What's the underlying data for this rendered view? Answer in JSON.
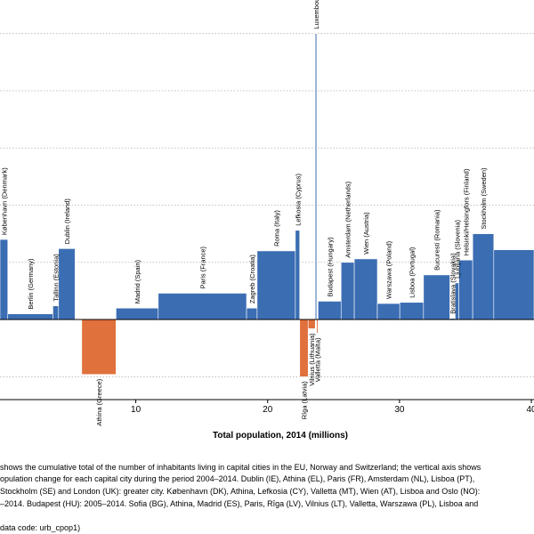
{
  "chart_data": {
    "type": "bar",
    "variant": "variable-width",
    "xlabel": "Total population, 2014 (millions)",
    "ylabel": "",
    "x_ticks": [
      10,
      20,
      30,
      40
    ],
    "xlim": [
      -0.3,
      40.2
    ],
    "ylim": [
      -7,
      27
    ],
    "y_gridlines": [
      -5,
      0,
      5,
      10,
      15,
      20,
      25
    ],
    "grid": true,
    "legend": "none",
    "colors": {
      "increase": "#3b6db3",
      "decrease": "#e0703c",
      "grid": "#b0b0b0",
      "axis": "#000000"
    },
    "bars": [
      {
        "label": "København (Denmark)",
        "start": -0.3,
        "width": 0.59,
        "value": 7.0
      },
      {
        "label": "Berlin (Germany)",
        "start": 0.29,
        "width": 3.42,
        "value": 0.5
      },
      {
        "label": "Tallinn (Estonia)",
        "start": 3.71,
        "width": 0.43,
        "value": 1.2
      },
      {
        "label": "Dublin (Ireland)",
        "start": 4.14,
        "width": 1.25,
        "value": 6.2
      },
      {
        "label": "Athina (Greece)",
        "start": 5.9,
        "width": 2.6,
        "value": -4.8
      },
      {
        "label": "Madrid (Spain)",
        "start": 8.5,
        "width": 3.2,
        "value": 1.0
      },
      {
        "label": "Paris (France)",
        "start": 11.7,
        "width": 6.7,
        "value": 2.3
      },
      {
        "label": "Zagreb (Croatia)",
        "start": 18.4,
        "width": 0.8,
        "value": 1.0
      },
      {
        "label": "Roma (Italy)",
        "start": 19.2,
        "width": 2.9,
        "value": 6.0
      },
      {
        "label": "Lefkosia (Cyprus)",
        "start": 22.1,
        "width": 0.33,
        "value": 7.8
      },
      {
        "label": "Rīga (Latvia)",
        "start": 22.43,
        "width": 0.64,
        "value": -5.0
      },
      {
        "label": "Vilnius (Lithuania)",
        "start": 23.07,
        "width": 0.54,
        "value": -0.8
      },
      {
        "label": "Luxembourg (Luxembourg)",
        "start": 23.61,
        "width": 0.11,
        "value": 25.0
      },
      {
        "label": "Valletta (Malta)",
        "start": 23.72,
        "width": 0.1,
        "value": -1.2
      },
      {
        "label": "Budapest (Hungary)",
        "start": 23.82,
        "width": 1.75,
        "value": 1.6
      },
      {
        "label": "Amsterdam (Netherlands)",
        "start": 25.57,
        "width": 1.0,
        "value": 5.0
      },
      {
        "label": "Wien (Austria)",
        "start": 26.57,
        "width": 1.75,
        "value": 5.3
      },
      {
        "label": "Warszawa (Poland)",
        "start": 28.32,
        "width": 1.7,
        "value": 1.4
      },
      {
        "label": "Lisboa (Portugal)",
        "start": 30.02,
        "width": 1.8,
        "value": 1.5
      },
      {
        "label": "Bucuresti (Romania)",
        "start": 31.82,
        "width": 2.0,
        "value": 3.9
      },
      {
        "label": "Bratislava (Slovakia)",
        "start": 33.82,
        "width": 0.4,
        "value": 0.1
      },
      {
        "label": "Ljubljana (Slovenia)",
        "start": 34.22,
        "width": 0.28,
        "value": 3.2
      },
      {
        "label": "Helsinki/Helsingfors (Finland)",
        "start": 34.5,
        "width": 1.05,
        "value": 5.2
      },
      {
        "label": "Stockholm (Sweden)",
        "start": 35.55,
        "width": 1.6,
        "value": 7.5
      },
      {
        "label": "",
        "start": 37.15,
        "width": 3.05,
        "value": 6.1
      }
    ]
  },
  "footnotes": {
    "line1": "shows the cumulative total of the number of inhabitants living in capital cities in the EU, Norway and Switzerland; the vertical axis shows",
    "line2": "opulation change for each capital city during the period 2004–2014. Dublin (IE), Athina (EL), Paris (FR), Amsterdam (NL), Lisboa (PT),",
    "line3": "Stockholm (SE) and London (UK): greater city. København (DK), Athina, Lefkosia (CY), Valletta (MT), Wien (AT), Lisboa and Oslo (NO):",
    "line4": "–2014. Budapest (HU): 2005–2014. Sofia (BG), Athina, Madrid (ES), Paris, Rīga (LV), Vilnius (LT), Valletta, Warszawa (PL), Lisboa and",
    "source": "data code: urb_cpop1)"
  }
}
